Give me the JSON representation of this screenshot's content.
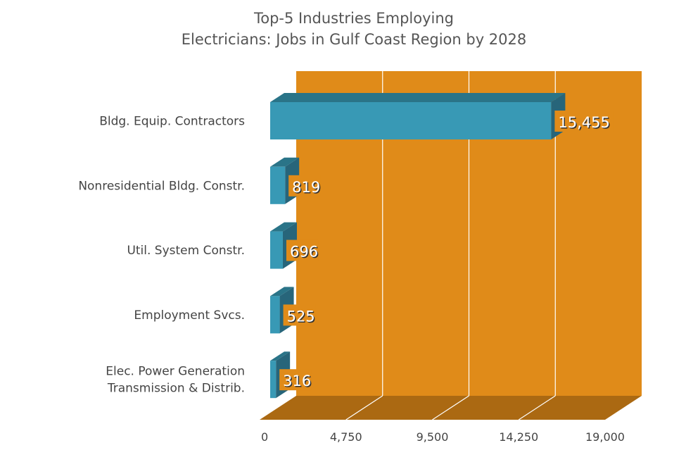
{
  "chart_data": {
    "type": "bar",
    "orientation": "horizontal",
    "style": "3d",
    "title": [
      "Top-5 Industries Employing",
      "Electricians: Jobs in Gulf Coast Region by 2028"
    ],
    "categories": [
      [
        "Bldg. Equip. Contractors"
      ],
      [
        "Nonresidential Bldg. Constr."
      ],
      [
        "Util. System Constr."
      ],
      [
        "Employment Svcs."
      ],
      [
        "Elec. Power Generation",
        "Transmission & Distrib."
      ]
    ],
    "values": [
      15455,
      819,
      696,
      525,
      316
    ],
    "data_labels": [
      "15,455",
      "819",
      "696",
      "525",
      "316"
    ],
    "xlim": [
      0,
      19000
    ],
    "xticks": [
      0,
      4750,
      9500,
      14250,
      19000
    ],
    "xtick_labels": [
      "0",
      "4,750",
      "9,500",
      "14,250",
      "19,000"
    ],
    "grid": true,
    "legend": "none",
    "colors": {
      "bar_front": "#3899b5",
      "bar_top": "#2a7488",
      "bar_side": "#27657a",
      "wall": "#e08b19",
      "floor": "#ab6912",
      "grid": "#ffffff"
    }
  }
}
